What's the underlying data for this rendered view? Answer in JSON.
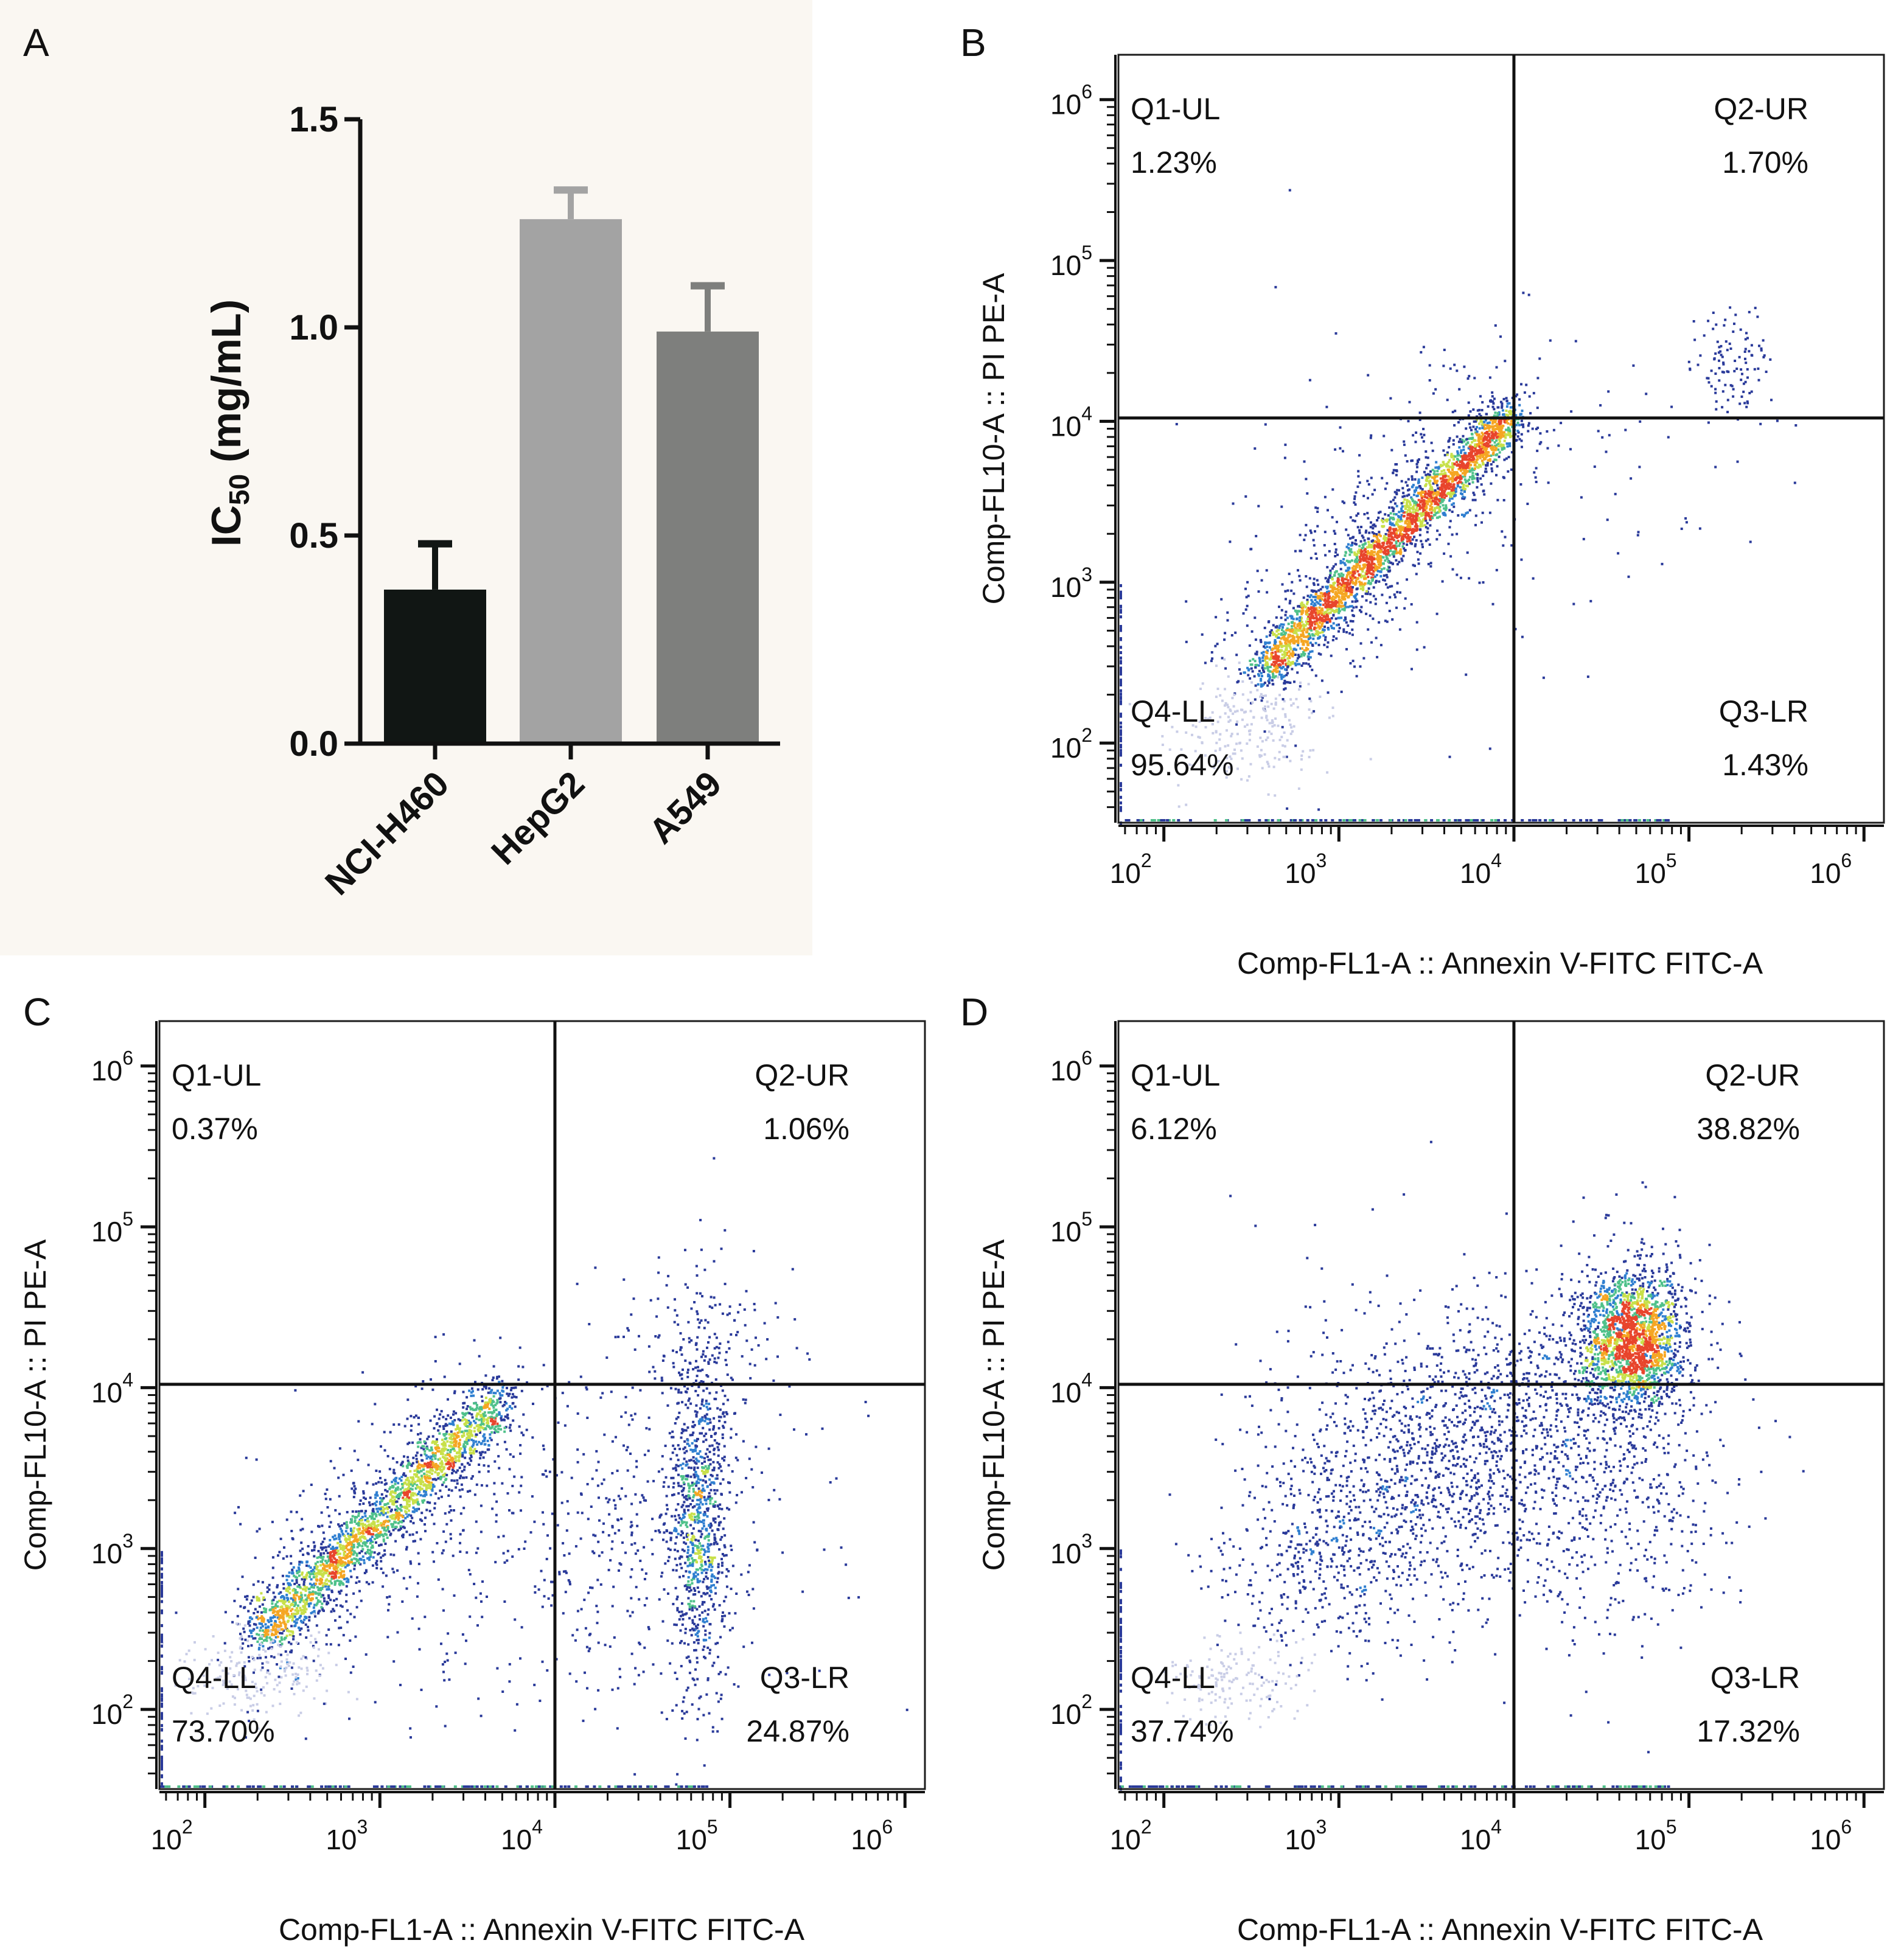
{
  "chart_data": [
    {
      "panel": "A",
      "type": "bar",
      "categories": [
        "NCI-H460",
        "HepG2",
        "A549"
      ],
      "values": [
        0.37,
        1.26,
        0.99
      ],
      "errors": [
        0.11,
        0.07,
        0.11
      ],
      "colors": [
        "#111614",
        "#a3a3a3",
        "#7e7f7d"
      ],
      "ylabel_main": "IC",
      "ylabel_sub": "50",
      "ylabel_rest": " (mg/mL)",
      "ylim": [
        0,
        1.5
      ],
      "yticks": [
        0.0,
        0.5,
        1.0,
        1.5
      ],
      "ytick_labels": [
        "0.0",
        "0.5",
        "1.0",
        "1.5"
      ],
      "background": "#faf7f2"
    },
    {
      "panel": "B",
      "type": "scatter",
      "xlabel": "Comp-FL1-A :: Annexin V-FITC FITC-A",
      "ylabel": "Comp-FL10-A :: PI PE-A",
      "x_scale": "log",
      "y_scale": "log",
      "xlim": [
        55,
        1300000
      ],
      "ylim": [
        32,
        1900000
      ],
      "tick_base": "10",
      "tick_exponents": [
        "2",
        "3",
        "4",
        "5",
        "6"
      ],
      "gate": {
        "x": 10000,
        "y": 10500
      },
      "quadrants": [
        {
          "name": "Q1-UL",
          "percent": "1.23%"
        },
        {
          "name": "Q2-UR",
          "percent": "1.70%"
        },
        {
          "name": "Q3-LR",
          "percent": "1.43%"
        },
        {
          "name": "Q4-LL",
          "percent": "95.64%"
        }
      ]
    },
    {
      "panel": "C",
      "type": "scatter",
      "xlabel": "Comp-FL1-A :: Annexin V-FITC FITC-A",
      "ylabel": "Comp-FL10-A :: PI PE-A",
      "x_scale": "log",
      "y_scale": "log",
      "xlim": [
        55,
        1300000
      ],
      "ylim": [
        32,
        1900000
      ],
      "tick_base": "10",
      "tick_exponents": [
        "2",
        "3",
        "4",
        "5",
        "6"
      ],
      "gate": {
        "x": 10000,
        "y": 10500
      },
      "quadrants": [
        {
          "name": "Q1-UL",
          "percent": "0.37%"
        },
        {
          "name": "Q2-UR",
          "percent": "1.06%"
        },
        {
          "name": "Q3-LR",
          "percent": "24.87%"
        },
        {
          "name": "Q4-LL",
          "percent": "73.70%"
        }
      ]
    },
    {
      "panel": "D",
      "type": "scatter",
      "xlabel": "Comp-FL1-A :: Annexin V-FITC FITC-A",
      "ylabel": "Comp-FL10-A :: PI PE-A",
      "x_scale": "log",
      "y_scale": "log",
      "xlim": [
        55,
        1300000
      ],
      "ylim": [
        32,
        1900000
      ],
      "tick_base": "10",
      "tick_exponents": [
        "2",
        "3",
        "4",
        "5",
        "6"
      ],
      "gate": {
        "x": 10000,
        "y": 10500
      },
      "quadrants": [
        {
          "name": "Q1-UL",
          "percent": "6.12%"
        },
        {
          "name": "Q2-UR",
          "percent": "38.82%"
        },
        {
          "name": "Q3-LR",
          "percent": "17.32%"
        },
        {
          "name": "Q4-LL",
          "percent": "37.74%"
        }
      ]
    }
  ],
  "density_colors": [
    "#2a3a9a",
    "#2f7fd0",
    "#4fc18a",
    "#c8e04a",
    "#f5a623",
    "#e8452c"
  ]
}
